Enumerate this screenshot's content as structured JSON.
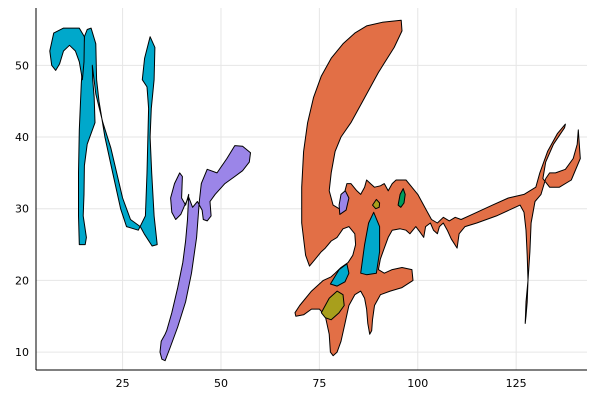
{
  "chart_data": {
    "type": "area",
    "title": "",
    "xlabel": "",
    "ylabel": "",
    "xlim": [
      3,
      143
    ],
    "ylim": [
      7.5,
      58
    ],
    "xticks": [
      25,
      50,
      75,
      100,
      125
    ],
    "yticks": [
      10,
      20,
      30,
      40,
      50
    ],
    "grid": true,
    "legend": "none",
    "series": [
      {
        "color": "#00a8cb",
        "points": [
          [
            17,
            55.2
          ],
          [
            18.2,
            53
          ],
          [
            18.4,
            48
          ],
          [
            19,
            45
          ],
          [
            20.5,
            40
          ],
          [
            22.5,
            35
          ],
          [
            24.5,
            30
          ],
          [
            26,
            27.5
          ],
          [
            29,
            27
          ],
          [
            30.8,
            29
          ],
          [
            31.2,
            35
          ],
          [
            31.6,
            44
          ],
          [
            31.2,
            47
          ],
          [
            30,
            48
          ],
          [
            30.6,
            51
          ],
          [
            32,
            54
          ],
          [
            33.2,
            52.5
          ],
          [
            33,
            48
          ],
          [
            32.3,
            44
          ],
          [
            32,
            40
          ],
          [
            32.4,
            35
          ],
          [
            33,
            29
          ],
          [
            33.8,
            25
          ],
          [
            32.5,
            24.8
          ],
          [
            30.5,
            26.5
          ],
          [
            29.5,
            27.5
          ],
          [
            27,
            28.5
          ],
          [
            25,
            31.5
          ],
          [
            23.5,
            35
          ],
          [
            22,
            38.5
          ],
          [
            20,
            42
          ],
          [
            18.2,
            46
          ],
          [
            17.3,
            50
          ],
          [
            17.4,
            48
          ],
          [
            17.8,
            45.5
          ],
          [
            18,
            42
          ],
          [
            16,
            39
          ],
          [
            15.3,
            36
          ],
          [
            15.2,
            32
          ],
          [
            15,
            29
          ],
          [
            15.8,
            26
          ],
          [
            15.5,
            25
          ],
          [
            14,
            25
          ],
          [
            13.8,
            29
          ],
          [
            13.8,
            35
          ],
          [
            14,
            41
          ],
          [
            14.5,
            47.5
          ],
          [
            15,
            51.5
          ],
          [
            15.3,
            54
          ],
          [
            16,
            55
          ],
          [
            17,
            55.2
          ]
        ]
      },
      {
        "color": "#00a8cb",
        "points": [
          [
            15.3,
            54
          ],
          [
            14,
            55.2
          ],
          [
            10,
            55.2
          ],
          [
            7.5,
            54.5
          ],
          [
            6.5,
            52
          ],
          [
            7,
            50
          ],
          [
            8,
            49.3
          ],
          [
            9,
            50.2
          ],
          [
            10,
            52
          ],
          [
            11.5,
            52.8
          ],
          [
            13,
            52
          ],
          [
            14,
            50.5
          ],
          [
            14.8,
            48
          ],
          [
            15.2,
            50.5
          ]
        ]
      },
      {
        "color": "#9b85e8",
        "points": [
          [
            35,
            9
          ],
          [
            35.8,
            8.8
          ],
          [
            37,
            10.5
          ],
          [
            39,
            13.5
          ],
          [
            41,
            17
          ],
          [
            42.5,
            21
          ],
          [
            43.8,
            26
          ],
          [
            44.5,
            31
          ],
          [
            45,
            33.5
          ],
          [
            46.5,
            35.5
          ],
          [
            49,
            35
          ],
          [
            51.5,
            37
          ],
          [
            53.5,
            38.8
          ],
          [
            55.5,
            38.7
          ],
          [
            57.5,
            37.8
          ],
          [
            57.2,
            36.5
          ],
          [
            55.5,
            35.3
          ],
          [
            53.5,
            34.5
          ],
          [
            51,
            33.5
          ],
          [
            48.5,
            32
          ],
          [
            47.2,
            31
          ],
          [
            47.5,
            29
          ],
          [
            46.5,
            28.3
          ],
          [
            45.5,
            28.5
          ],
          [
            45.2,
            29.8
          ],
          [
            44,
            31
          ],
          [
            42.8,
            30.2
          ],
          [
            41.8,
            31.6
          ],
          [
            40.8,
            30.5
          ],
          [
            39.8,
            29.2
          ],
          [
            38.5,
            28.5
          ],
          [
            37.5,
            29.5
          ],
          [
            37.2,
            31.5
          ],
          [
            38.2,
            33.5
          ],
          [
            39.5,
            35
          ],
          [
            40.2,
            34.5
          ],
          [
            40,
            31.5
          ],
          [
            41,
            30.5
          ],
          [
            41.8,
            32
          ],
          [
            41.5,
            28.5
          ],
          [
            41,
            25.5
          ],
          [
            40.3,
            22.5
          ],
          [
            39,
            19
          ],
          [
            37.5,
            15.5
          ],
          [
            36.2,
            13
          ],
          [
            35.8,
            12.5
          ],
          [
            34.8,
            11.5
          ],
          [
            34.5,
            10
          ],
          [
            35,
            9
          ]
        ]
      },
      {
        "color": "#e26f46",
        "points": [
          [
            95.8,
            56.3
          ],
          [
            96,
            54.8
          ],
          [
            94,
            52.5
          ],
          [
            90,
            49
          ],
          [
            86,
            45
          ],
          [
            83,
            42
          ],
          [
            80.5,
            40
          ],
          [
            79,
            38
          ],
          [
            78,
            35
          ],
          [
            77.5,
            32.5
          ],
          [
            78.5,
            30.5
          ],
          [
            80,
            30
          ],
          [
            81,
            31
          ],
          [
            81.5,
            32.5
          ],
          [
            82,
            33.5
          ],
          [
            83,
            33.5
          ],
          [
            84.5,
            32.5
          ],
          [
            85.5,
            32
          ],
          [
            86.5,
            33
          ],
          [
            87,
            34
          ],
          [
            88,
            33.5
          ],
          [
            89,
            33
          ],
          [
            90.5,
            33.2
          ],
          [
            91.5,
            33.5
          ],
          [
            92.5,
            32.5
          ],
          [
            93.5,
            33.5
          ],
          [
            94.5,
            34
          ],
          [
            97,
            34
          ],
          [
            98.5,
            33
          ],
          [
            100,
            32
          ],
          [
            102,
            30
          ],
          [
            103.5,
            28.5
          ],
          [
            105,
            28
          ],
          [
            106.5,
            28.8
          ],
          [
            108,
            28.3
          ],
          [
            109.5,
            28.8
          ],
          [
            111,
            28.5
          ],
          [
            113,
            29
          ],
          [
            115,
            29.5
          ],
          [
            119,
            30.5
          ],
          [
            123,
            31.5
          ],
          [
            127,
            32
          ],
          [
            130,
            33
          ],
          [
            131,
            35
          ],
          [
            133,
            38
          ],
          [
            135.5,
            40.5
          ],
          [
            137.5,
            41.8
          ],
          [
            137.3,
            41.3
          ],
          [
            134.5,
            39
          ],
          [
            132.5,
            36.5
          ],
          [
            131.8,
            34.2
          ],
          [
            133.5,
            33
          ],
          [
            136,
            33
          ],
          [
            139,
            34
          ],
          [
            141.3,
            37
          ],
          [
            140.8,
            41
          ],
          [
            140.5,
            39
          ],
          [
            139.5,
            37
          ],
          [
            137.5,
            35.5
          ],
          [
            135,
            35
          ],
          [
            133.5,
            35
          ],
          [
            132.5,
            34.2
          ],
          [
            131.3,
            32
          ],
          [
            129.8,
            31
          ],
          [
            128.8,
            28
          ],
          [
            128.5,
            24
          ],
          [
            128,
            20
          ],
          [
            127.8,
            17
          ],
          [
            127.5,
            15
          ],
          [
            127.3,
            14
          ],
          [
            127.5,
            17
          ],
          [
            128,
            20
          ],
          [
            127.8,
            23.5
          ],
          [
            127.5,
            27
          ],
          [
            127,
            29.5
          ],
          [
            126,
            30.5
          ],
          [
            124,
            30
          ],
          [
            120,
            29
          ],
          [
            115,
            28
          ],
          [
            112,
            27.5
          ],
          [
            110.5,
            26.5
          ],
          [
            110,
            24.5
          ],
          [
            108.5,
            25.8
          ],
          [
            107.5,
            27
          ],
          [
            106.5,
            28
          ],
          [
            105.5,
            27.5
          ],
          [
            105,
            26.5
          ],
          [
            104,
            27
          ],
          [
            103.2,
            28
          ],
          [
            102,
            27.5
          ],
          [
            101.5,
            26
          ],
          [
            100.5,
            26.8
          ],
          [
            99.5,
            27.5
          ],
          [
            98,
            26.5
          ],
          [
            97,
            27
          ],
          [
            95.5,
            27.2
          ],
          [
            93.5,
            27
          ],
          [
            92.5,
            26
          ],
          [
            91.5,
            24.5
          ],
          [
            90.5,
            23
          ],
          [
            90,
            21.5
          ],
          [
            91.5,
            21
          ],
          [
            93.5,
            21.5
          ],
          [
            96,
            21.8
          ],
          [
            98.5,
            21.5
          ],
          [
            98.8,
            20
          ],
          [
            96,
            19
          ],
          [
            93,
            18.5
          ],
          [
            90.5,
            18
          ],
          [
            89,
            16.5
          ],
          [
            88.5,
            14.5
          ],
          [
            88.3,
            13
          ],
          [
            87.8,
            12.5
          ],
          [
            87.3,
            14
          ],
          [
            87,
            16
          ],
          [
            86.5,
            17.5
          ],
          [
            85.5,
            18.5
          ],
          [
            84,
            18
          ],
          [
            82.5,
            16.5
          ],
          [
            81.5,
            14
          ],
          [
            80.5,
            11.5
          ],
          [
            79.5,
            10
          ],
          [
            78.5,
            9.5
          ],
          [
            77.8,
            10
          ],
          [
            77.5,
            12.5
          ],
          [
            76.5,
            15
          ],
          [
            75,
            16
          ],
          [
            73,
            16
          ],
          [
            71,
            15.2
          ],
          [
            69,
            15
          ],
          [
            68.8,
            15.5
          ],
          [
            70,
            16.5
          ],
          [
            73,
            18.5
          ],
          [
            76,
            20
          ],
          [
            78,
            20.5
          ],
          [
            79,
            21
          ],
          [
            80.5,
            21.8
          ],
          [
            82.3,
            22.5
          ],
          [
            83.5,
            23.5
          ],
          [
            84.2,
            25
          ],
          [
            84,
            26.5
          ],
          [
            82.5,
            27.5
          ],
          [
            81,
            27.2
          ],
          [
            79.5,
            26
          ],
          [
            78,
            25.5
          ],
          [
            76.5,
            24.5
          ],
          [
            75.5,
            24
          ],
          [
            74,
            23
          ],
          [
            72.5,
            22
          ],
          [
            71.5,
            23.5
          ],
          [
            70.5,
            28
          ],
          [
            70.5,
            33
          ],
          [
            71,
            38
          ],
          [
            72,
            42
          ],
          [
            73.5,
            45.5
          ],
          [
            75.5,
            48.5
          ],
          [
            78,
            51
          ],
          [
            81,
            53
          ],
          [
            84,
            54.5
          ],
          [
            87,
            55.5
          ],
          [
            91,
            56
          ],
          [
            95.8,
            56.3
          ]
        ]
      },
      {
        "color": "#9b85e8",
        "points": [
          [
            80.2,
            29.2
          ],
          [
            81.8,
            29.8
          ],
          [
            82.5,
            31.5
          ],
          [
            81.6,
            32.5
          ],
          [
            80.5,
            32
          ],
          [
            80,
            30.5
          ],
          [
            80.2,
            29.2
          ]
        ]
      },
      {
        "color": "#00a8cb",
        "points": [
          [
            85.5,
            21
          ],
          [
            86.5,
            25
          ],
          [
            87.5,
            28
          ],
          [
            88.8,
            29.5
          ],
          [
            90.3,
            27.5
          ],
          [
            90.3,
            24
          ],
          [
            89.5,
            21
          ],
          [
            87,
            20.8
          ],
          [
            85.5,
            21
          ]
        ]
      },
      {
        "color": "#00a8cb",
        "points": [
          [
            77.8,
            19.5
          ],
          [
            80,
            21.5
          ],
          [
            82,
            22.3
          ],
          [
            82.5,
            21
          ],
          [
            81.5,
            19.8
          ],
          [
            79.5,
            19.2
          ],
          [
            77.8,
            19.5
          ]
        ]
      },
      {
        "color": "#009d5c",
        "points": [
          [
            95,
            30.5
          ],
          [
            95.5,
            32
          ],
          [
            96.3,
            32.8
          ],
          [
            96.8,
            32
          ],
          [
            96.5,
            30.8
          ],
          [
            95.7,
            30.2
          ],
          [
            95,
            30.5
          ]
        ]
      },
      {
        "color": "#a89f1c",
        "points": [
          [
            88.5,
            30.5
          ],
          [
            89.5,
            31.3
          ],
          [
            90.3,
            30.8
          ],
          [
            90.2,
            30.2
          ],
          [
            89.3,
            30
          ],
          [
            88.5,
            30.5
          ]
        ]
      },
      {
        "color": "#a89f1c",
        "points": [
          [
            75.5,
            15.5
          ],
          [
            77.5,
            17.5
          ],
          [
            79.5,
            18.5
          ],
          [
            81,
            18
          ],
          [
            81.3,
            16.5
          ],
          [
            80,
            15.5
          ],
          [
            78,
            14.5
          ],
          [
            76.5,
            14.8
          ],
          [
            75.5,
            15.5
          ]
        ]
      }
    ]
  }
}
